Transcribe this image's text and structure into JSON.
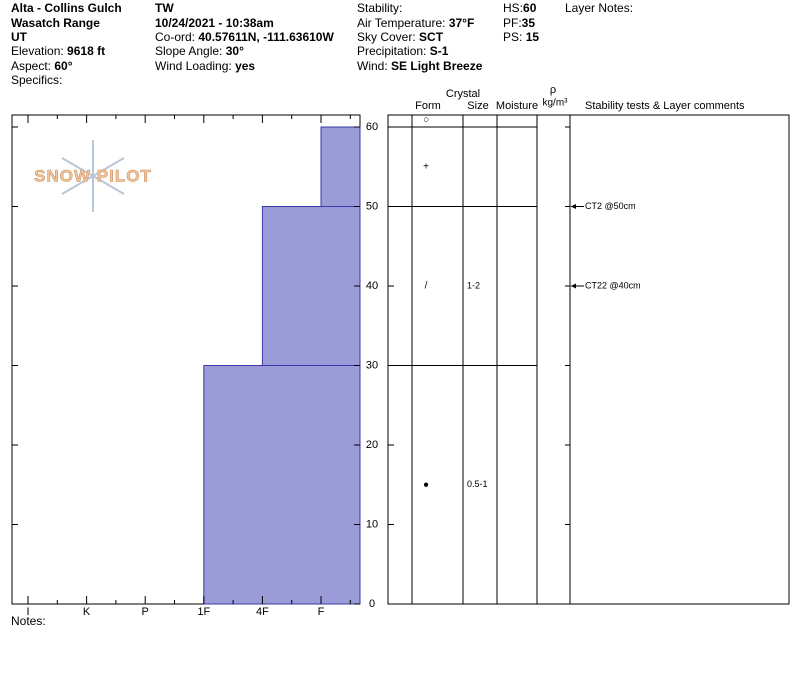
{
  "header": {
    "location": "Alta - Collins Gulch",
    "range": "Wasatch Range",
    "state": "UT",
    "elevation": {
      "label": "Elevation:",
      "value": "9618 ft"
    },
    "aspect": {
      "label": "Aspect:",
      "value": "60°"
    },
    "specifics": "Specifics:",
    "observer": "TW",
    "datetime": "10/24/2021 - 10:38am",
    "coord": {
      "label": "Co-ord:",
      "value": "40.57611N, -111.63610W"
    },
    "slope": {
      "label": "Slope Angle:",
      "value": "30°"
    },
    "wind_loading": {
      "label": "Wind Loading:",
      "value": "yes"
    },
    "stability": "Stability:",
    "air_temp": {
      "label": "Air Temperature:",
      "value": "37°F"
    },
    "sky": {
      "label": "Sky Cover:",
      "value": "SCT"
    },
    "precip": {
      "label": "Precipitation:",
      "value": "S-1"
    },
    "wind": {
      "label": "Wind:",
      "value": "SE Light Breeze"
    },
    "hs": {
      "label": "HS:",
      "value": "60"
    },
    "pf": {
      "label": "PF:",
      "value": "35"
    },
    "ps": {
      "label": "PS:",
      "value": "15"
    },
    "layer_notes": "Layer Notes:"
  },
  "chart_data": {
    "type": "hardness_profile",
    "categories": [
      "I",
      "K",
      "P",
      "1F",
      "4F",
      "F"
    ],
    "ylim": [
      0,
      60
    ],
    "yticks": [
      0,
      10,
      20,
      30,
      40,
      50,
      60
    ],
    "color": "#9b9bd8",
    "edge_color": "#3a3aa8",
    "layers": [
      {
        "bottom": 0,
        "top": 30,
        "hardness": "1F"
      },
      {
        "bottom": 30,
        "top": 50,
        "hardness": "4F"
      },
      {
        "bottom": 50,
        "top": 60,
        "hardness": "F"
      }
    ]
  },
  "columns": {
    "form": "Form",
    "crystal": "Crystal",
    "size": "Size",
    "moisture": "Moisture",
    "rho": "ρ",
    "density_unit": "kg/m³",
    "comments": "Stability tests & Layer comments"
  },
  "grains": [
    {
      "form": "○"
    },
    {
      "depth": 55,
      "form": "+"
    },
    {
      "depth": 40,
      "form": "/",
      "size": "1-2"
    },
    {
      "depth": 15,
      "form": "●",
      "size": "0.5-1"
    }
  ],
  "tests": [
    {
      "depth": 50,
      "label": "CT2 @50cm"
    },
    {
      "depth": 40,
      "label": "CT22 @40cm"
    }
  ],
  "watermark": "SNOW PILOT",
  "notes": "Notes:"
}
